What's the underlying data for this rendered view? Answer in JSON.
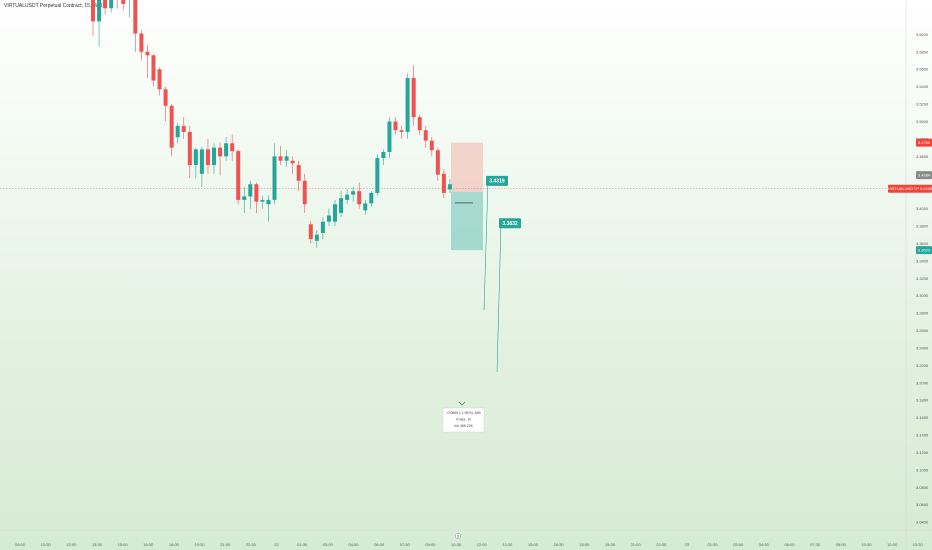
{
  "chart_data": {
    "type": "candlestick",
    "title": "VIRTUALUSDT Perpetual Contract, 15, WHIT",
    "y_axis_side": "right",
    "y_ticks": [
      "3.6000",
      "3.5800",
      "3.5600",
      "3.5400",
      "3.5200",
      "3.5000",
      "3.4800",
      "3.4600",
      "3.4400",
      "3.4200",
      "3.4000",
      "3.3800",
      "3.3600",
      "3.3400",
      "3.3200",
      "3.3000",
      "3.2800",
      "3.2600",
      "3.2400",
      "3.2200",
      "3.2000",
      "3.1800",
      "3.1600",
      "3.1400",
      "3.1200",
      "3.1000",
      "3.0800",
      "3.0600",
      "3.0400"
    ],
    "y_range": [
      3.031,
      3.6395
    ],
    "x_ticks": [
      "09:00",
      "10:30",
      "12:00",
      "13:30",
      "15:00",
      "16:30",
      "18:00",
      "19:30",
      "21:00",
      "22:30",
      "22",
      "01:30",
      "03:00",
      "04:30",
      "06:00",
      "07:30",
      "09:00",
      "10:30",
      "12:00",
      "13:30",
      "15:00",
      "16:30",
      "18:00",
      "19:30",
      "21:00",
      "22:30",
      "23",
      "01:30",
      "03:00",
      "04:30",
      "06:00",
      "07:30",
      "09:00",
      "10:30",
      "12:00",
      "13:30"
    ],
    "candles": [
      {
        "o": 3.7,
        "h": 3.7,
        "l": 3.598,
        "c": 3.615
      },
      {
        "o": 3.615,
        "h": 3.651,
        "l": 3.586,
        "c": 3.641
      },
      {
        "o": 3.65,
        "h": 3.664,
        "l": 3.623,
        "c": 3.63
      },
      {
        "o": 3.63,
        "h": 3.645,
        "l": 3.625,
        "c": 3.64
      },
      {
        "o": 3.648,
        "h": 3.655,
        "l": 3.63,
        "c": 3.64
      },
      {
        "o": 3.66,
        "h": 3.665,
        "l": 3.628,
        "c": 3.635
      },
      {
        "o": 3.64,
        "h": 3.678,
        "l": 3.62,
        "c": 3.67
      },
      {
        "o": 3.66,
        "h": 3.66,
        "l": 3.58,
        "c": 3.601
      },
      {
        "o": 3.601,
        "h": 3.605,
        "l": 3.57,
        "c": 3.58
      },
      {
        "o": 3.58,
        "h": 3.588,
        "l": 3.55,
        "c": 3.576
      },
      {
        "o": 3.576,
        "h": 3.578,
        "l": 3.54,
        "c": 3.547
      },
      {
        "o": 3.56,
        "h": 3.562,
        "l": 3.53,
        "c": 3.537
      },
      {
        "o": 3.537,
        "h": 3.54,
        "l": 3.5,
        "c": 3.518
      },
      {
        "o": 3.518,
        "h": 3.52,
        "l": 3.46,
        "c": 3.47
      },
      {
        "o": 3.482,
        "h": 3.498,
        "l": 3.475,
        "c": 3.495
      },
      {
        "o": 3.495,
        "h": 3.505,
        "l": 3.48,
        "c": 3.488
      },
      {
        "o": 3.488,
        "h": 3.495,
        "l": 3.435,
        "c": 3.45
      },
      {
        "o": 3.45,
        "h": 3.47,
        "l": 3.435,
        "c": 3.468
      },
      {
        "o": 3.44,
        "h": 3.471,
        "l": 3.425,
        "c": 3.468
      },
      {
        "o": 3.468,
        "h": 3.48,
        "l": 3.44,
        "c": 3.45
      },
      {
        "o": 3.45,
        "h": 3.475,
        "l": 3.44,
        "c": 3.47
      },
      {
        "o": 3.47,
        "h": 3.476,
        "l": 3.438,
        "c": 3.46
      },
      {
        "o": 3.46,
        "h": 3.482,
        "l": 3.455,
        "c": 3.475
      },
      {
        "o": 3.475,
        "h": 3.485,
        "l": 3.455,
        "c": 3.466
      },
      {
        "o": 3.466,
        "h": 3.468,
        "l": 3.405,
        "c": 3.41
      },
      {
        "o": 3.41,
        "h": 3.425,
        "l": 3.395,
        "c": 3.414
      },
      {
        "o": 3.414,
        "h": 3.432,
        "l": 3.4,
        "c": 3.428
      },
      {
        "o": 3.428,
        "h": 3.43,
        "l": 3.395,
        "c": 3.408
      },
      {
        "o": 3.408,
        "h": 3.415,
        "l": 3.4,
        "c": 3.41
      },
      {
        "o": 3.405,
        "h": 3.415,
        "l": 3.385,
        "c": 3.41
      },
      {
        "o": 3.41,
        "h": 3.475,
        "l": 3.405,
        "c": 3.46
      },
      {
        "o": 3.46,
        "h": 3.472,
        "l": 3.45,
        "c": 3.455
      },
      {
        "o": 3.455,
        "h": 3.467,
        "l": 3.448,
        "c": 3.46
      },
      {
        "o": 3.455,
        "h": 3.46,
        "l": 3.44,
        "c": 3.452
      },
      {
        "o": 3.45,
        "h": 3.455,
        "l": 3.42,
        "c": 3.432
      },
      {
        "o": 3.432,
        "h": 3.44,
        "l": 3.395,
        "c": 3.405
      },
      {
        "o": 3.382,
        "h": 3.386,
        "l": 3.36,
        "c": 3.365
      },
      {
        "o": 3.363,
        "h": 3.375,
        "l": 3.355,
        "c": 3.37
      },
      {
        "o": 3.372,
        "h": 3.39,
        "l": 3.365,
        "c": 3.385
      },
      {
        "o": 3.385,
        "h": 3.4,
        "l": 3.38,
        "c": 3.392
      },
      {
        "o": 3.385,
        "h": 3.41,
        "l": 3.38,
        "c": 3.405
      },
      {
        "o": 3.395,
        "h": 3.42,
        "l": 3.39,
        "c": 3.412
      },
      {
        "o": 3.41,
        "h": 3.422,
        "l": 3.405,
        "c": 3.416
      },
      {
        "o": 3.416,
        "h": 3.425,
        "l": 3.408,
        "c": 3.42
      },
      {
        "o": 3.42,
        "h": 3.43,
        "l": 3.4,
        "c": 3.405
      },
      {
        "o": 3.398,
        "h": 3.41,
        "l": 3.393,
        "c": 3.406
      },
      {
        "o": 3.406,
        "h": 3.42,
        "l": 3.402,
        "c": 3.418
      },
      {
        "o": 3.418,
        "h": 3.462,
        "l": 3.415,
        "c": 3.458
      },
      {
        "o": 3.458,
        "h": 3.468,
        "l": 3.45,
        "c": 3.465
      },
      {
        "o": 3.465,
        "h": 3.505,
        "l": 3.458,
        "c": 3.5
      },
      {
        "o": 3.5,
        "h": 3.505,
        "l": 3.485,
        "c": 3.49
      },
      {
        "o": 3.49,
        "h": 3.495,
        "l": 3.48,
        "c": 3.488
      },
      {
        "o": 3.488,
        "h": 3.555,
        "l": 3.48,
        "c": 3.55
      },
      {
        "o": 3.55,
        "h": 3.565,
        "l": 3.495,
        "c": 3.505
      },
      {
        "o": 3.505,
        "h": 3.508,
        "l": 3.485,
        "c": 3.49
      },
      {
        "o": 3.49,
        "h": 3.495,
        "l": 3.47,
        "c": 3.478
      },
      {
        "o": 3.478,
        "h": 3.482,
        "l": 3.46,
        "c": 3.467
      },
      {
        "o": 3.467,
        "h": 3.47,
        "l": 3.432,
        "c": 3.439
      },
      {
        "o": 3.44,
        "h": 3.445,
        "l": 3.412,
        "c": 3.418
      },
      {
        "o": 3.422,
        "h": 3.434,
        "l": 3.418,
        "c": 3.428
      }
    ],
    "trade": {
      "entry": 3.4192,
      "stop": 3.4758,
      "target": 3.3523,
      "price_line": 3.4228
    },
    "y_tags": [
      {
        "value": 3.4758,
        "text": "3.4758",
        "color": "#f44336"
      },
      {
        "value": 3.4384,
        "text": "3.4384",
        "color": "#8a8a8a"
      },
      {
        "value": 3.4228,
        "text": "VIRTUALUSDT.P  3.4228",
        "color": "#f44336"
      },
      {
        "value": 3.3523,
        "text": "3.3523",
        "color": "#26a69a"
      }
    ],
    "callouts": [
      {
        "value": 3.4319,
        "text": "3.4319"
      },
      {
        "value": 3.3832,
        "text": "3.3832"
      }
    ],
    "info_box": [
      "-0.0669 (-1.95%) -669",
      "4 bars, 1h",
      "Vol 465.22K"
    ],
    "time_marker": "0"
  }
}
